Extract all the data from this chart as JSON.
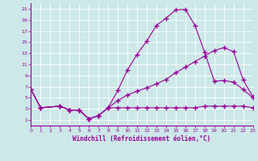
{
  "line1_x": [
    0,
    1,
    3,
    4,
    5,
    6,
    7,
    8,
    9,
    10,
    11,
    12,
    13,
    14,
    15,
    16,
    17,
    18,
    19,
    20,
    21,
    22,
    23
  ],
  "line1_y": [
    6.5,
    3.2,
    3.5,
    2.8,
    2.8,
    1.2,
    1.8,
    3.2,
    6.3,
    10.0,
    12.8,
    15.2,
    18.0,
    19.3,
    20.8,
    20.9,
    18.0,
    13.2,
    8.0,
    8.1,
    7.8,
    6.5,
    5.0
  ],
  "line2_x": [
    0,
    1,
    3,
    4,
    5,
    6,
    7,
    8,
    9,
    10,
    11,
    12,
    13,
    14,
    15,
    16,
    17,
    18,
    19,
    20,
    21,
    22,
    23
  ],
  "line2_y": [
    6.5,
    3.2,
    3.5,
    2.8,
    2.8,
    1.2,
    1.8,
    3.2,
    4.5,
    5.5,
    6.2,
    6.8,
    7.5,
    8.3,
    9.5,
    10.5,
    11.5,
    12.5,
    13.5,
    14.0,
    13.3,
    8.2,
    5.2
  ],
  "line3_x": [
    0,
    1,
    3,
    4,
    5,
    6,
    7,
    8,
    9,
    10,
    11,
    12,
    13,
    14,
    15,
    16,
    17,
    18,
    19,
    20,
    21,
    22,
    23
  ],
  "line3_y": [
    6.5,
    3.2,
    3.5,
    2.8,
    2.8,
    1.2,
    1.8,
    3.2,
    3.2,
    3.2,
    3.2,
    3.2,
    3.2,
    3.2,
    3.2,
    3.2,
    3.2,
    3.5,
    3.5,
    3.5,
    3.5,
    3.5,
    3.2
  ],
  "color": "#990099",
  "bg_color": "#cce8e8",
  "xlabel": "Windchill (Refroidissement éolien,°C)",
  "ylim": [
    0,
    22
  ],
  "xlim": [
    0,
    23
  ],
  "yticks": [
    1,
    3,
    5,
    7,
    9,
    11,
    13,
    15,
    17,
    19,
    21
  ],
  "xticks": [
    0,
    1,
    2,
    3,
    4,
    5,
    6,
    7,
    8,
    9,
    10,
    11,
    12,
    13,
    14,
    15,
    16,
    17,
    18,
    19,
    20,
    21,
    22,
    23
  ]
}
